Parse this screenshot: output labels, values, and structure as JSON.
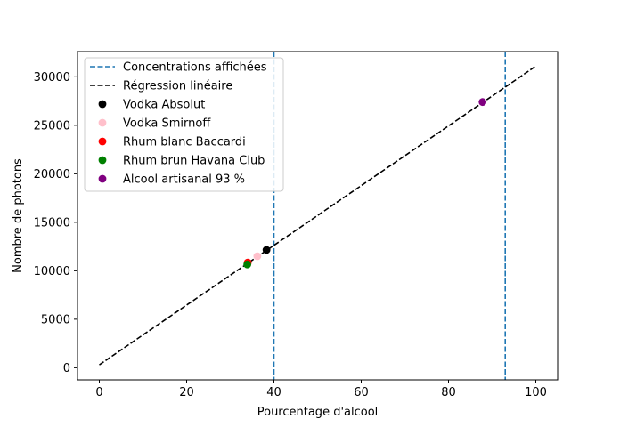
{
  "chart_data": {
    "type": "scatter",
    "xlabel": "Pourcentage d'alcool",
    "ylabel": "Nombre de photons",
    "xlim": [
      -5,
      105
    ],
    "ylim": [
      -1250,
      32600
    ],
    "xticks": [
      0,
      20,
      40,
      60,
      80,
      100
    ],
    "yticks": [
      0,
      5000,
      10000,
      15000,
      20000,
      25000,
      30000
    ],
    "grid": false,
    "legend_position": "top-left",
    "vlines": {
      "name": "Concentrations affichées",
      "x": [
        40,
        93
      ],
      "color": "#1f77b4",
      "style": "dashed"
    },
    "regression": {
      "name": "Régression linéaire",
      "x": [
        0,
        100
      ],
      "y": [
        300,
        31100
      ],
      "color": "#000000",
      "style": "dashed"
    },
    "points": [
      {
        "name": "Vodka Absolut",
        "x": 38.3,
        "y": 12150,
        "color": "#000000"
      },
      {
        "name": "Vodka Smirnoff",
        "x": 36.2,
        "y": 11500,
        "color": "#ffc0cb"
      },
      {
        "name": "Rhum blanc Baccardi",
        "x": 34.0,
        "y": 10850,
        "color": "#ff0000"
      },
      {
        "name": "Rhum brun Havana Club",
        "x": 33.9,
        "y": 10650,
        "color": "#008000"
      },
      {
        "name": "Alcool artisanal 93 %",
        "x": 87.8,
        "y": 27400,
        "color": "#800080"
      }
    ]
  }
}
